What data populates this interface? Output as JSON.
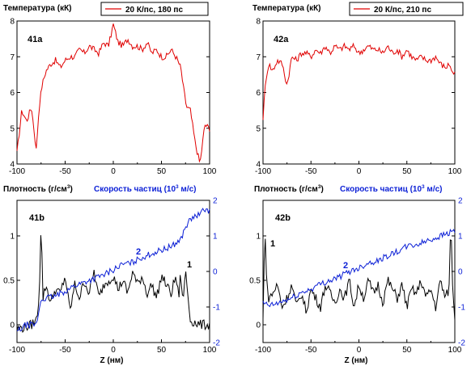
{
  "headers": {
    "temperature": "Температура (кК)",
    "density": "Плотность (г/см",
    "density_sup": "3",
    "density_close": ")",
    "velocity": "Скорость частиц (10",
    "velocity_sup": "3",
    "velocity_close": " м/с)"
  },
  "xlabel": "Z (нм)",
  "colors": {
    "red": "#e00000",
    "blue": "#0b1fd6",
    "black": "#000000"
  },
  "chart_data": [
    {
      "panel": "41a",
      "type": "line",
      "title": "Температура (кК)",
      "legend": {
        "label": "20 К/пс, 180 пс",
        "placement": "top-right"
      },
      "xlim": [
        -100,
        100
      ],
      "ylim": [
        4,
        8
      ],
      "xticks": [
        -100,
        -50,
        0,
        50,
        100
      ],
      "yticks": [
        4,
        5,
        6,
        7,
        8
      ],
      "series": [
        {
          "name": "20 К/пс, 180 пс",
          "color": "red",
          "x": [
            -100,
            -95,
            -90,
            -85,
            -80,
            -77,
            -74,
            -70,
            -65,
            -60,
            -55,
            -50,
            -45,
            -40,
            -35,
            -30,
            -25,
            -20,
            -15,
            -10,
            -5,
            0,
            5,
            10,
            15,
            20,
            25,
            30,
            35,
            40,
            45,
            50,
            55,
            60,
            65,
            70,
            73,
            76,
            80,
            85,
            90,
            95,
            100
          ],
          "y": [
            4.3,
            5.5,
            5.2,
            5.6,
            4.4,
            5.6,
            6.2,
            6.6,
            6.8,
            6.9,
            6.7,
            6.9,
            7.0,
            7.0,
            7.2,
            7.1,
            7.3,
            7.2,
            7.1,
            7.4,
            7.3,
            7.9,
            7.4,
            7.3,
            7.5,
            7.3,
            7.3,
            7.2,
            7.4,
            7.1,
            7.2,
            7.0,
            7.0,
            7.2,
            7.0,
            6.7,
            6.1,
            5.6,
            5.5,
            4.6,
            4.0,
            5.1,
            5.0
          ]
        }
      ]
    },
    {
      "panel": "42a",
      "type": "line",
      "title": "Температура (кК)",
      "legend": {
        "label": "20 К/пс, 210 пс",
        "placement": "top-right"
      },
      "xlim": [
        -100,
        100
      ],
      "ylim": [
        4,
        8
      ],
      "xticks": [
        -100,
        -50,
        0,
        50,
        100
      ],
      "yticks": [
        4,
        5,
        6,
        7,
        8
      ],
      "series": [
        {
          "name": "20 К/пс, 210 пс",
          "color": "red",
          "x": [
            -100,
            -97,
            -94,
            -90,
            -85,
            -80,
            -75,
            -70,
            -65,
            -60,
            -55,
            -50,
            -45,
            -40,
            -35,
            -30,
            -25,
            -20,
            -15,
            -10,
            -5,
            0,
            5,
            10,
            15,
            20,
            25,
            30,
            35,
            40,
            45,
            50,
            55,
            60,
            65,
            70,
            75,
            80,
            85,
            90,
            95,
            98,
            100
          ],
          "y": [
            5.3,
            6.4,
            6.8,
            6.6,
            6.9,
            6.8,
            6.2,
            7.0,
            6.9,
            7.1,
            7.1,
            7.0,
            7.2,
            7.1,
            7.3,
            7.1,
            7.3,
            7.2,
            7.3,
            7.2,
            7.3,
            7.1,
            7.2,
            7.3,
            7.2,
            7.2,
            7.1,
            7.3,
            7.1,
            7.2,
            7.0,
            7.2,
            7.0,
            6.9,
            7.0,
            6.9,
            6.9,
            7.0,
            6.8,
            6.7,
            6.8,
            6.5,
            6.6
          ]
        }
      ]
    },
    {
      "panel": "41b",
      "type": "line",
      "xlabel": "Z (нм)",
      "xlim": [
        -100,
        100
      ],
      "ylim": [
        -0.2,
        1.4
      ],
      "y2lim": [
        -2,
        2
      ],
      "xticks": [
        -100,
        -50,
        0,
        50,
        100
      ],
      "yticks": [
        0.0,
        0.5,
        1.0
      ],
      "y2ticks": [
        -2,
        -1,
        0,
        1,
        2
      ],
      "annotations": [
        {
          "text": "1",
          "color": "black"
        },
        {
          "text": "2",
          "color": "blue"
        }
      ],
      "series": [
        {
          "name": "1",
          "color": "black",
          "axis": "left",
          "x": [
            -100,
            -90,
            -85,
            -80,
            -77,
            -75,
            -73,
            -70,
            -65,
            -60,
            -55,
            -50,
            -45,
            -40,
            -35,
            -30,
            -25,
            -20,
            -15,
            -10,
            -5,
            0,
            5,
            10,
            15,
            20,
            25,
            30,
            35,
            40,
            45,
            50,
            55,
            60,
            65,
            68,
            70,
            72,
            75,
            80,
            90,
            100
          ],
          "y": [
            -0.05,
            -0.02,
            0.0,
            0.05,
            0.3,
            1.17,
            0.3,
            0.45,
            0.25,
            0.4,
            0.35,
            0.55,
            0.15,
            0.45,
            0.3,
            0.5,
            0.35,
            0.6,
            0.3,
            0.45,
            0.5,
            0.55,
            0.4,
            0.5,
            0.35,
            0.6,
            0.45,
            0.55,
            0.35,
            0.45,
            0.3,
            0.55,
            0.45,
            0.35,
            0.55,
            0.3,
            0.6,
            0.25,
            0.6,
            0.05,
            0.0,
            0.0
          ]
        },
        {
          "name": "2",
          "color": "blue",
          "axis": "right",
          "x": [
            -100,
            -90,
            -80,
            -75,
            -70,
            -60,
            -50,
            -40,
            -30,
            -20,
            -10,
            0,
            10,
            20,
            30,
            40,
            50,
            60,
            70,
            73,
            76,
            80,
            85,
            90,
            95,
            100
          ],
          "y": [
            -1.7,
            -1.5,
            -1.5,
            -0.8,
            -0.75,
            -0.7,
            -0.55,
            -0.4,
            -0.3,
            -0.2,
            -0.1,
            0.05,
            0.2,
            0.25,
            0.4,
            0.5,
            0.6,
            0.7,
            0.9,
            1.1,
            1.3,
            1.45,
            1.55,
            1.6,
            1.75,
            1.7
          ]
        }
      ]
    },
    {
      "panel": "42b",
      "type": "line",
      "xlabel": "Z (нм)",
      "xlim": [
        -100,
        100
      ],
      "ylim": [
        -0.2,
        1.4
      ],
      "y2lim": [
        -2,
        2
      ],
      "xticks": [
        -100,
        -50,
        0,
        50,
        100
      ],
      "yticks": [
        0.0,
        0.5,
        1.0
      ],
      "y2ticks": [
        -2,
        -1,
        0,
        1,
        2
      ],
      "annotations": [
        {
          "text": "1",
          "color": "black"
        },
        {
          "text": "2",
          "color": "blue"
        }
      ],
      "series": [
        {
          "name": "1",
          "color": "black",
          "axis": "left",
          "x": [
            -100,
            -98,
            -96,
            -94,
            -90,
            -85,
            -80,
            -75,
            -70,
            -65,
            -60,
            -55,
            -50,
            -45,
            -40,
            -35,
            -30,
            -25,
            -20,
            -15,
            -10,
            -5,
            0,
            5,
            10,
            15,
            20,
            25,
            30,
            35,
            40,
            45,
            50,
            55,
            60,
            65,
            70,
            75,
            80,
            85,
            90,
            94,
            96,
            98,
            100
          ],
          "y": [
            0.05,
            1.15,
            0.4,
            0.3,
            0.35,
            0.45,
            0.2,
            0.3,
            0.45,
            0.2,
            0.35,
            0.15,
            0.4,
            0.3,
            0.2,
            0.45,
            0.35,
            0.25,
            0.4,
            0.3,
            0.5,
            0.2,
            0.45,
            0.3,
            0.5,
            0.35,
            0.45,
            0.25,
            0.5,
            0.4,
            0.3,
            0.45,
            0.2,
            0.4,
            0.35,
            0.5,
            0.3,
            0.4,
            0.2,
            0.5,
            0.3,
            0.4,
            1.2,
            0.3,
            0.1
          ]
        },
        {
          "name": "2",
          "color": "blue",
          "axis": "right",
          "x": [
            -100,
            -95,
            -90,
            -80,
            -70,
            -60,
            -50,
            -40,
            -30,
            -20,
            -10,
            0,
            10,
            20,
            30,
            40,
            50,
            60,
            70,
            80,
            90,
            95,
            100
          ],
          "y": [
            -0.9,
            -0.95,
            -0.95,
            -0.85,
            -0.75,
            -0.6,
            -0.5,
            -0.35,
            -0.25,
            -0.15,
            0.0,
            0.1,
            0.25,
            0.3,
            0.45,
            0.55,
            0.7,
            0.75,
            0.85,
            0.95,
            1.05,
            1.1,
            1.15
          ]
        }
      ]
    }
  ]
}
